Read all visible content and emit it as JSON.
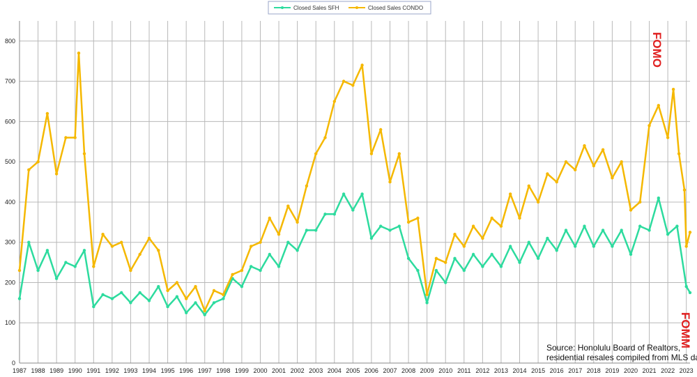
{
  "chart_data": {
    "type": "line",
    "ylim": [
      0,
      850
    ],
    "yticks": [
      0,
      100,
      200,
      300,
      400,
      500,
      600,
      700,
      800
    ],
    "xlim": [
      1987,
      2023.2
    ],
    "xticks": [
      "1987",
      "1988",
      "1989",
      "1990",
      "1991",
      "1992",
      "1993",
      "1994",
      "1995",
      "1996",
      "1997",
      "1998",
      "1999",
      "2000",
      "2001",
      "2002",
      "2003",
      "2004",
      "2005",
      "2006",
      "2007",
      "2008",
      "2009",
      "2010",
      "2011",
      "2012",
      "2013",
      "2014",
      "2015",
      "2016",
      "2017",
      "2018",
      "2019",
      "2020",
      "2021",
      "2022",
      "2023"
    ],
    "grid": true,
    "legend_position": "top-center",
    "series": [
      {
        "name": "Closed Sales SFH",
        "color": "#2ddb9e",
        "x": [
          1987.0,
          1987.5,
          1988.0,
          1988.5,
          1989.0,
          1989.5,
          1990.0,
          1990.5,
          1991.0,
          1991.5,
          1992.0,
          1992.5,
          1993.0,
          1993.5,
          1994.0,
          1994.5,
          1995.0,
          1995.5,
          1996.0,
          1996.5,
          1997.0,
          1997.5,
          1998.0,
          1998.5,
          1999.0,
          1999.5,
          2000.0,
          2000.5,
          2001.0,
          2001.5,
          2002.0,
          2002.5,
          2003.0,
          2003.5,
          2004.0,
          2004.5,
          2005.0,
          2005.5,
          2006.0,
          2006.5,
          2007.0,
          2007.5,
          2008.0,
          2008.5,
          2009.0,
          2009.5,
          2010.0,
          2010.5,
          2011.0,
          2011.5,
          2012.0,
          2012.5,
          2013.0,
          2013.5,
          2014.0,
          2014.5,
          2015.0,
          2015.5,
          2016.0,
          2016.5,
          2017.0,
          2017.5,
          2018.0,
          2018.5,
          2019.0,
          2019.5,
          2020.0,
          2020.5,
          2021.0,
          2021.5,
          2022.0,
          2022.5,
          2023.0,
          2023.2
        ],
        "values": [
          160,
          300,
          230,
          280,
          210,
          250,
          240,
          280,
          140,
          170,
          160,
          175,
          150,
          175,
          155,
          190,
          140,
          165,
          125,
          150,
          120,
          150,
          160,
          210,
          190,
          240,
          230,
          270,
          240,
          300,
          280,
          330,
          330,
          370,
          370,
          420,
          380,
          420,
          310,
          340,
          330,
          340,
          260,
          230,
          150,
          230,
          200,
          260,
          230,
          270,
          240,
          270,
          240,
          290,
          250,
          300,
          260,
          310,
          280,
          330,
          290,
          340,
          290,
          330,
          290,
          330,
          270,
          340,
          330,
          410,
          320,
          340,
          190,
          175
        ]
      },
      {
        "name": "Closed Sales CONDO",
        "color": "#f5b800",
        "x": [
          1987.0,
          1987.5,
          1988.0,
          1988.5,
          1989.0,
          1989.5,
          1990.0,
          1990.2,
          1990.5,
          1991.0,
          1991.5,
          1992.0,
          1992.5,
          1993.0,
          1993.5,
          1994.0,
          1994.5,
          1995.0,
          1995.5,
          1996.0,
          1996.5,
          1997.0,
          1997.5,
          1998.0,
          1998.5,
          1999.0,
          1999.5,
          2000.0,
          2000.5,
          2001.0,
          2001.5,
          2002.0,
          2002.5,
          2003.0,
          2003.5,
          2004.0,
          2004.5,
          2005.0,
          2005.5,
          2006.0,
          2006.5,
          2007.0,
          2007.5,
          2008.0,
          2008.5,
          2009.0,
          2009.5,
          2010.0,
          2010.5,
          2011.0,
          2011.5,
          2012.0,
          2012.5,
          2013.0,
          2013.5,
          2014.0,
          2014.5,
          2015.0,
          2015.5,
          2016.0,
          2016.5,
          2017.0,
          2017.5,
          2018.0,
          2018.5,
          2019.0,
          2019.5,
          2020.0,
          2020.5,
          2021.0,
          2021.5,
          2022.0,
          2022.3,
          2022.6,
          2022.9,
          2023.0,
          2023.2
        ],
        "values": [
          230,
          480,
          500,
          620,
          470,
          560,
          560,
          770,
          520,
          240,
          320,
          290,
          300,
          230,
          270,
          310,
          280,
          180,
          200,
          160,
          190,
          130,
          180,
          170,
          220,
          230,
          290,
          300,
          360,
          320,
          390,
          350,
          440,
          520,
          560,
          650,
          700,
          690,
          740,
          520,
          580,
          450,
          520,
          350,
          360,
          170,
          260,
          250,
          320,
          290,
          340,
          310,
          360,
          340,
          420,
          360,
          440,
          400,
          470,
          450,
          500,
          480,
          540,
          490,
          530,
          460,
          500,
          380,
          400,
          590,
          640,
          560,
          680,
          520,
          430,
          290,
          325
        ]
      }
    ]
  },
  "annotations": {
    "fomo": "FOMO",
    "fomm": "FOMM",
    "source_line1": "Source: Honolulu Board of Realtors,",
    "source_line2": "residential resales compiled from MLS data"
  }
}
